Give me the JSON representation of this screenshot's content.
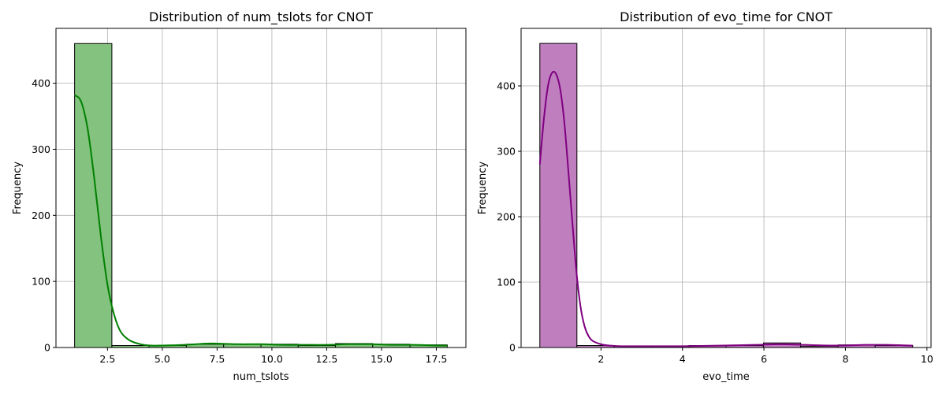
{
  "chart_data": [
    {
      "type": "bar",
      "title": "Distribution of num_tslots for CNOT",
      "xlabel": "num_tslots",
      "ylabel": "Frequency",
      "xlim": [
        0.15,
        18.85
      ],
      "ylim": [
        0,
        483
      ],
      "xticks": [
        2.5,
        5.0,
        7.5,
        10.0,
        12.5,
        15.0,
        17.5
      ],
      "xtick_labels": [
        "2.5",
        "5.0",
        "7.5",
        "10.0",
        "12.5",
        "15.0",
        "17.5"
      ],
      "yticks": [
        0,
        100,
        200,
        300,
        400
      ],
      "ytick_labels": [
        "0",
        "100",
        "200",
        "300",
        "400"
      ],
      "grid": true,
      "bar_color": "#84c27f",
      "edge_color": "#000000",
      "kde_color": "#008000",
      "bins": [
        {
          "x0": 1.0,
          "x1": 2.7,
          "value": 460
        },
        {
          "x0": 2.7,
          "x1": 4.4,
          "value": 3
        },
        {
          "x0": 4.4,
          "x1": 6.1,
          "value": 3
        },
        {
          "x0": 6.1,
          "x1": 7.8,
          "value": 5
        },
        {
          "x0": 7.8,
          "x1": 9.5,
          "value": 5
        },
        {
          "x0": 9.5,
          "x1": 11.2,
          "value": 5
        },
        {
          "x0": 11.2,
          "x1": 12.9,
          "value": 3
        },
        {
          "x0": 12.9,
          "x1": 14.6,
          "value": 6
        },
        {
          "x0": 14.6,
          "x1": 16.3,
          "value": 5
        },
        {
          "x0": 16.3,
          "x1": 18.0,
          "value": 4
        }
      ],
      "kde": {
        "x": [
          1.0,
          1.3,
          1.6,
          1.9,
          2.2,
          2.5,
          2.8,
          3.1,
          3.5,
          4.0,
          4.5,
          5.0,
          6.0,
          7.0,
          7.5,
          8.5,
          9.5,
          10.5,
          11.5,
          12.5,
          13.5,
          14.5,
          15.5,
          16.5,
          17.5,
          18.0
        ],
        "y": [
          382,
          372,
          330,
          255,
          168,
          95,
          50,
          24,
          11,
          5,
          3,
          3,
          4,
          6,
          6,
          5,
          5,
          4,
          4,
          4,
          5,
          5,
          4,
          4,
          3,
          3
        ]
      }
    },
    {
      "type": "bar",
      "title": "Distribution of evo_time for CNOT",
      "xlabel": "evo_time",
      "ylabel": "Frequency",
      "xlim": [
        0.04,
        10.1
      ],
      "ylim": [
        0,
        488
      ],
      "xticks": [
        2,
        4,
        6,
        8,
        10
      ],
      "xtick_labels": [
        "2",
        "4",
        "6",
        "8",
        "10"
      ],
      "yticks": [
        0,
        100,
        200,
        300,
        400
      ],
      "ytick_labels": [
        "0",
        "100",
        "200",
        "300",
        "400"
      ],
      "grid": true,
      "bar_color": "#bf7fbf",
      "edge_color": "#000000",
      "kde_color": "#800080",
      "bins": [
        {
          "x0": 0.5,
          "x1": 1.41,
          "value": 465
        },
        {
          "x0": 1.41,
          "x1": 2.33,
          "value": 3
        },
        {
          "x0": 2.33,
          "x1": 3.24,
          "value": 2
        },
        {
          "x0": 3.24,
          "x1": 4.16,
          "value": 2
        },
        {
          "x0": 4.16,
          "x1": 5.07,
          "value": 3
        },
        {
          "x0": 5.07,
          "x1": 5.99,
          "value": 3
        },
        {
          "x0": 5.99,
          "x1": 6.9,
          "value": 7
        },
        {
          "x0": 6.9,
          "x1": 7.82,
          "value": 2
        },
        {
          "x0": 7.82,
          "x1": 8.73,
          "value": 4
        },
        {
          "x0": 8.73,
          "x1": 9.65,
          "value": 3
        }
      ],
      "kde": {
        "x": [
          0.5,
          0.6,
          0.7,
          0.8,
          0.9,
          1.0,
          1.1,
          1.2,
          1.3,
          1.4,
          1.5,
          1.6,
          1.7,
          1.8,
          2.0,
          2.2,
          2.5,
          3.0,
          4.0,
          5.0,
          5.8,
          6.4,
          7.0,
          7.8,
          8.5,
          9.0,
          9.65
        ],
        "y": [
          280,
          350,
          400,
          420,
          418,
          395,
          345,
          270,
          190,
          115,
          62,
          32,
          17,
          10,
          5,
          3,
          2,
          2,
          2,
          3,
          4,
          5,
          4,
          3,
          4,
          4,
          3
        ]
      }
    }
  ]
}
